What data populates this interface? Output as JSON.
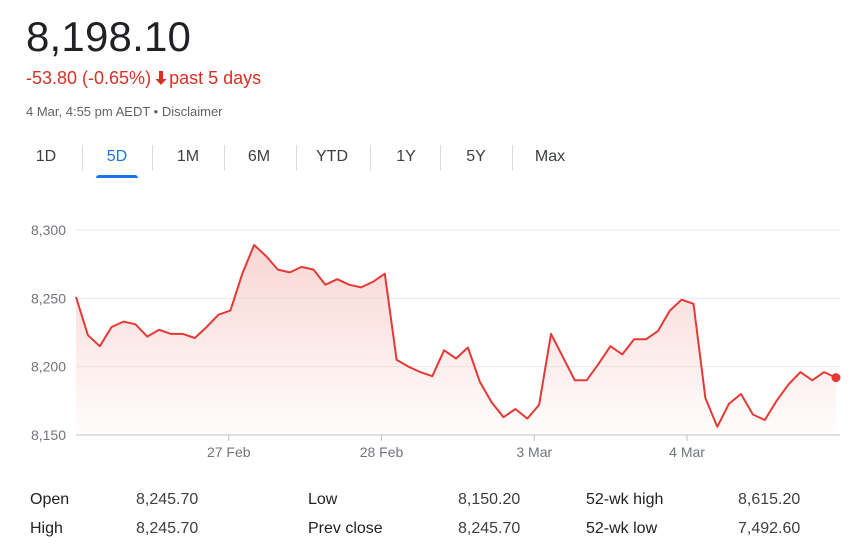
{
  "quote": {
    "price": "8,198.10",
    "change": "-53.80 (-0.65%)",
    "period": "past 5 days",
    "timestamp": "4 Mar, 4:55 pm AEDT",
    "disclaimer": "Disclaimer",
    "separator": " • "
  },
  "tabs": [
    {
      "label": "1D",
      "active": false
    },
    {
      "label": "5D",
      "active": true
    },
    {
      "label": "1M",
      "active": false
    },
    {
      "label": "6M",
      "active": false
    },
    {
      "label": "YTD",
      "active": false
    },
    {
      "label": "1Y",
      "active": false
    },
    {
      "label": "5Y",
      "active": false
    },
    {
      "label": "Max",
      "active": false
    }
  ],
  "colors": {
    "line": "#e53935",
    "fill_top": "#f6c9c6",
    "grid": "#e8eaed",
    "axis_text": "#70757a"
  },
  "chart_data": {
    "type": "area",
    "ylim": [
      8150,
      8300
    ],
    "yticks": [
      "8,300",
      "8,250",
      "8,200",
      "8,150"
    ],
    "ytick_values": [
      8300,
      8250,
      8200,
      8150
    ],
    "xticks": [
      {
        "label": "27 Feb",
        "x": 10.05
      },
      {
        "label": "28 Feb",
        "x": 20.1
      },
      {
        "label": "3 Mar",
        "x": 30.15
      },
      {
        "label": "4 Mar",
        "x": 40.2
      }
    ],
    "xlim": [
      0,
      50
    ],
    "grid": true,
    "series": [
      {
        "values": [
          8251,
          8223,
          8215,
          8229,
          8233,
          8231,
          8222,
          8227,
          8224,
          8224,
          8221,
          8229,
          8238,
          8241,
          8268,
          8289,
          8281,
          8271,
          8269,
          8273,
          8271,
          8260,
          8264,
          8260,
          8258,
          8262,
          8268,
          8205,
          8200,
          8196,
          8193,
          8212,
          8206,
          8214,
          8189,
          8174,
          8163,
          8169,
          8162,
          8172,
          8224,
          8207,
          8190,
          8190,
          8202,
          8215,
          8209,
          8220,
          8220,
          8226,
          8241,
          8249,
          8246,
          8177,
          8156,
          8173,
          8180,
          8165,
          8161,
          8175,
          8187,
          8196,
          8190,
          8196,
          8192
        ]
      }
    ]
  },
  "stats": [
    {
      "label": "Open",
      "value": "8,245.70"
    },
    {
      "label": "High",
      "value": "8,245.70"
    },
    {
      "label": "Low",
      "value": "8,150.20"
    },
    {
      "label": "Prev close",
      "value": "8,245.70"
    },
    {
      "label": "52-wk high",
      "value": "8,615.20"
    },
    {
      "label": "52-wk low",
      "value": "7,492.60"
    }
  ]
}
